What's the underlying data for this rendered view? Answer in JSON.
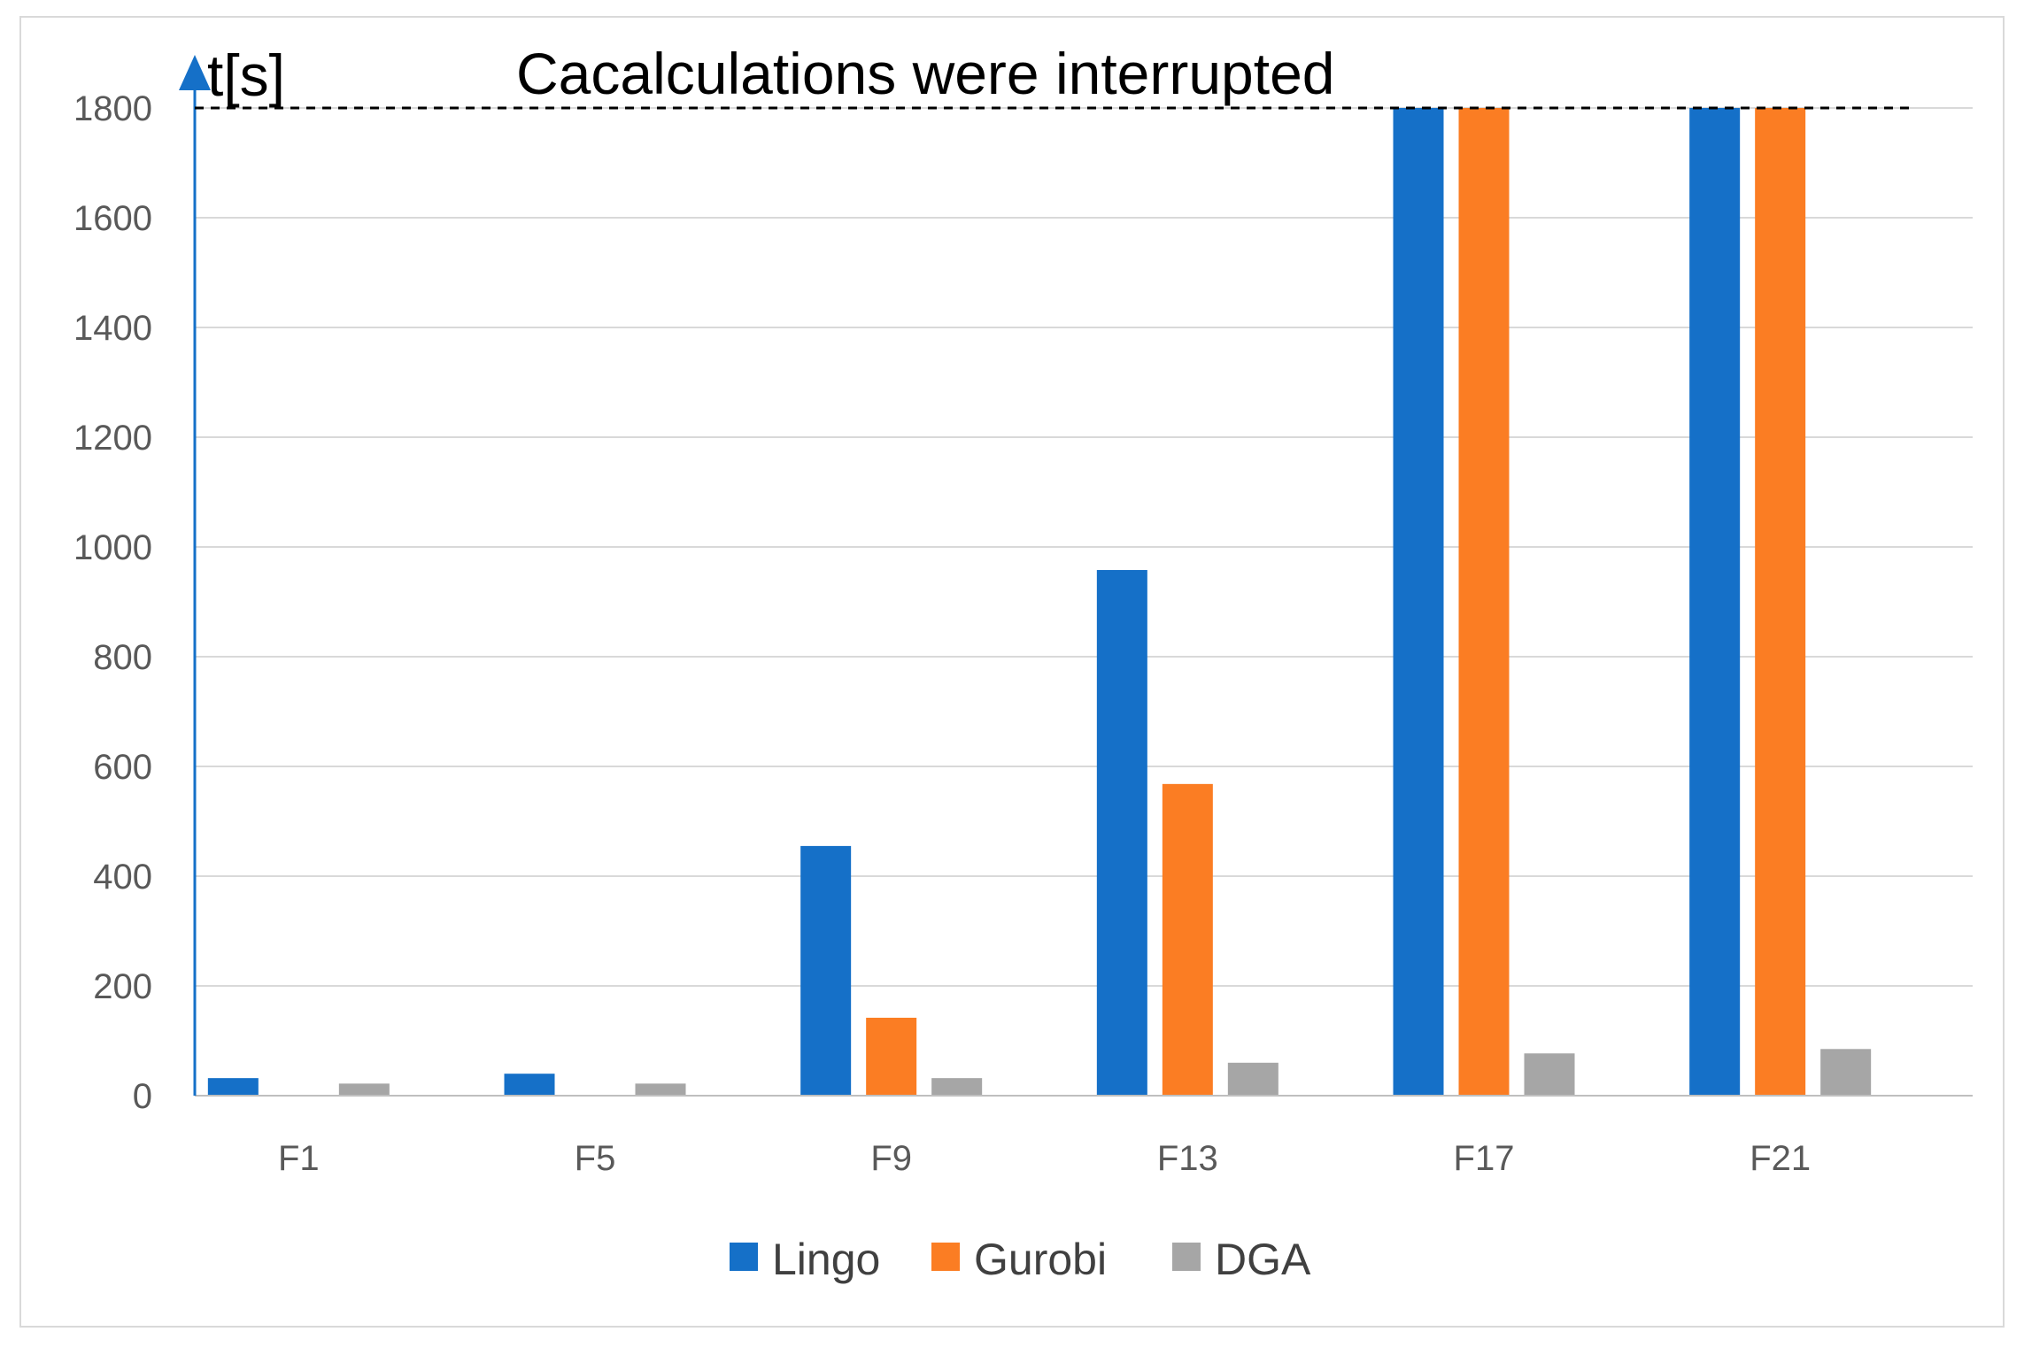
{
  "chart_data": {
    "type": "bar",
    "title": "",
    "xlabel": "",
    "ylabel": "t[s]",
    "ylim": [
      0,
      1800
    ],
    "yticks": [
      0,
      200,
      400,
      600,
      800,
      1000,
      1200,
      1400,
      1600,
      1800
    ],
    "categories": [
      "F1",
      "F5",
      "F9",
      "F13",
      "F17",
      "F21"
    ],
    "series": [
      {
        "name": "Lingo",
        "color": "#1570c8",
        "values": [
          32,
          40,
          455,
          958,
          1800,
          1800
        ]
      },
      {
        "name": "Gurobi",
        "color": "#fb7d23",
        "values": [
          0,
          0,
          142,
          568,
          1800,
          1800
        ]
      },
      {
        "name": "DGA",
        "color": "#a6a6a6",
        "values": [
          22,
          22,
          32,
          60,
          77,
          85
        ]
      }
    ],
    "grid": true,
    "legend": "bottom-center",
    "annotation": {
      "text": "Cacalculations were interrupted",
      "y_value": 1800,
      "style": "dashed"
    }
  }
}
